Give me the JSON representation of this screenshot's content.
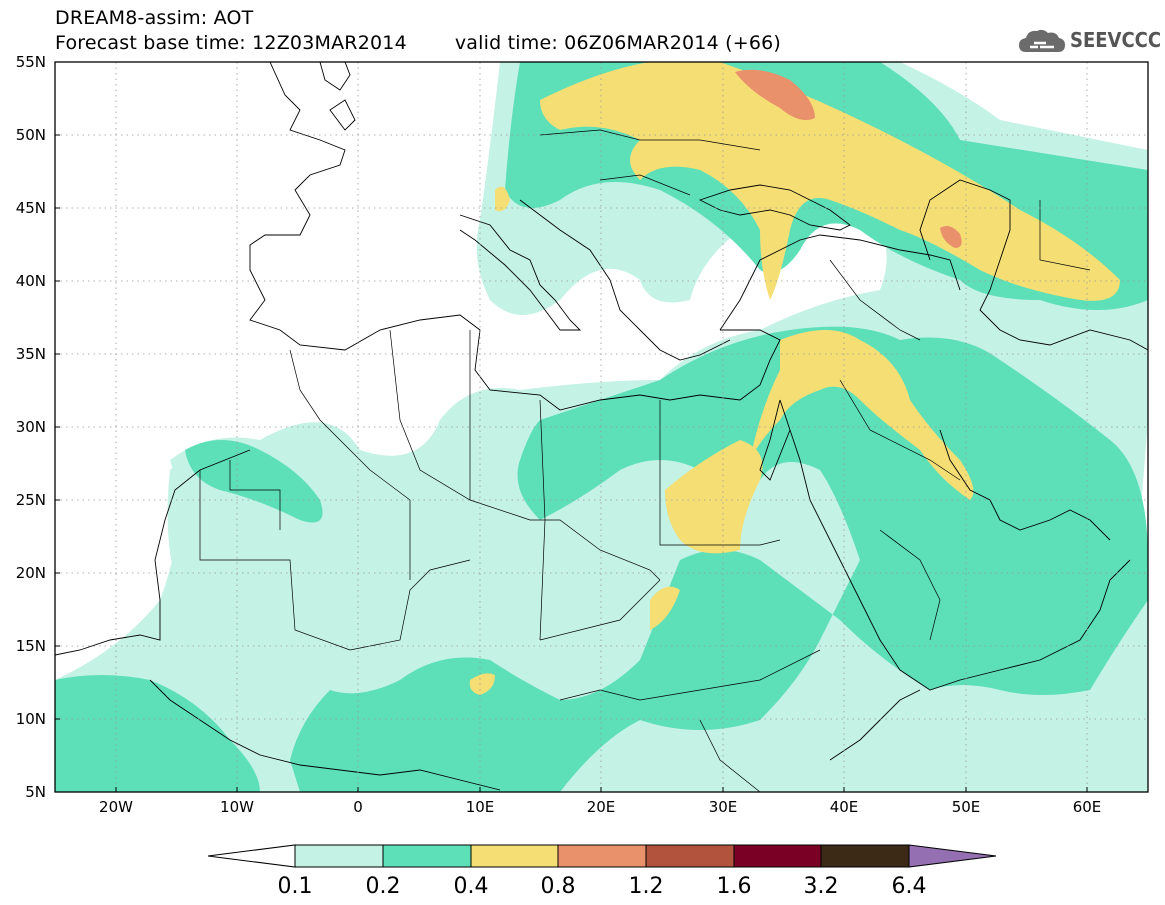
{
  "title": {
    "line1": "DREAM8-assim: AOT",
    "base_time": "Forecast base time: 12Z03MAR2014",
    "valid_time": "valid time: 06Z06MAR2014 (+66)"
  },
  "logo": {
    "text": "SEEVCCC",
    "icon": "cloud-icon"
  },
  "map": {
    "lat_labels": [
      "55N",
      "50N",
      "45N",
      "40N",
      "35N",
      "30N",
      "25N",
      "20N",
      "15N",
      "10N",
      "5N"
    ],
    "lon_labels": [
      "20W",
      "10W",
      "0",
      "10E",
      "20E",
      "30E",
      "40E",
      "50E",
      "60E"
    ],
    "lon_range": [
      -25,
      65
    ],
    "lat_range": [
      5,
      55
    ],
    "grid": "dotted"
  },
  "colorbar": {
    "levels": [
      "0.1",
      "0.2",
      "0.4",
      "0.8",
      "1.2",
      "1.6",
      "3.2",
      "6.4"
    ],
    "colors": [
      "#ffffff",
      "#c4f2e5",
      "#5ddfb8",
      "#f5df75",
      "#e9916a",
      "#b2533d",
      "#7b0026",
      "#3c2a17",
      "#9470b3"
    ]
  }
}
